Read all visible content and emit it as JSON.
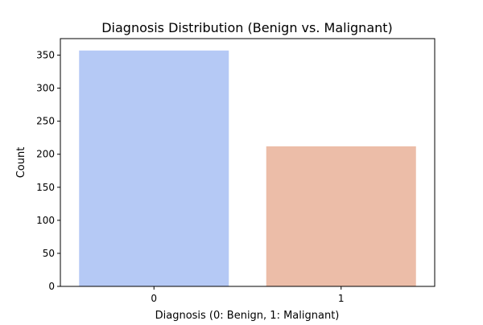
{
  "chart_data": {
    "type": "bar",
    "title": "Diagnosis Distribution (Benign vs. Malignant)",
    "xlabel": "Diagnosis (0: Benign, 1: Malignant)",
    "ylabel": "Count",
    "categories": [
      "0",
      "1"
    ],
    "values": [
      357,
      212
    ],
    "colors": [
      "#b5c9f5",
      "#ecbda8"
    ],
    "ylim": [
      0,
      375
    ],
    "yticks": [
      0,
      50,
      100,
      150,
      200,
      250,
      300,
      350
    ],
    "ytick_labels": [
      "0",
      "50",
      "100",
      "150",
      "200",
      "250",
      "300",
      "350"
    ],
    "grid": false,
    "legend": "none"
  }
}
